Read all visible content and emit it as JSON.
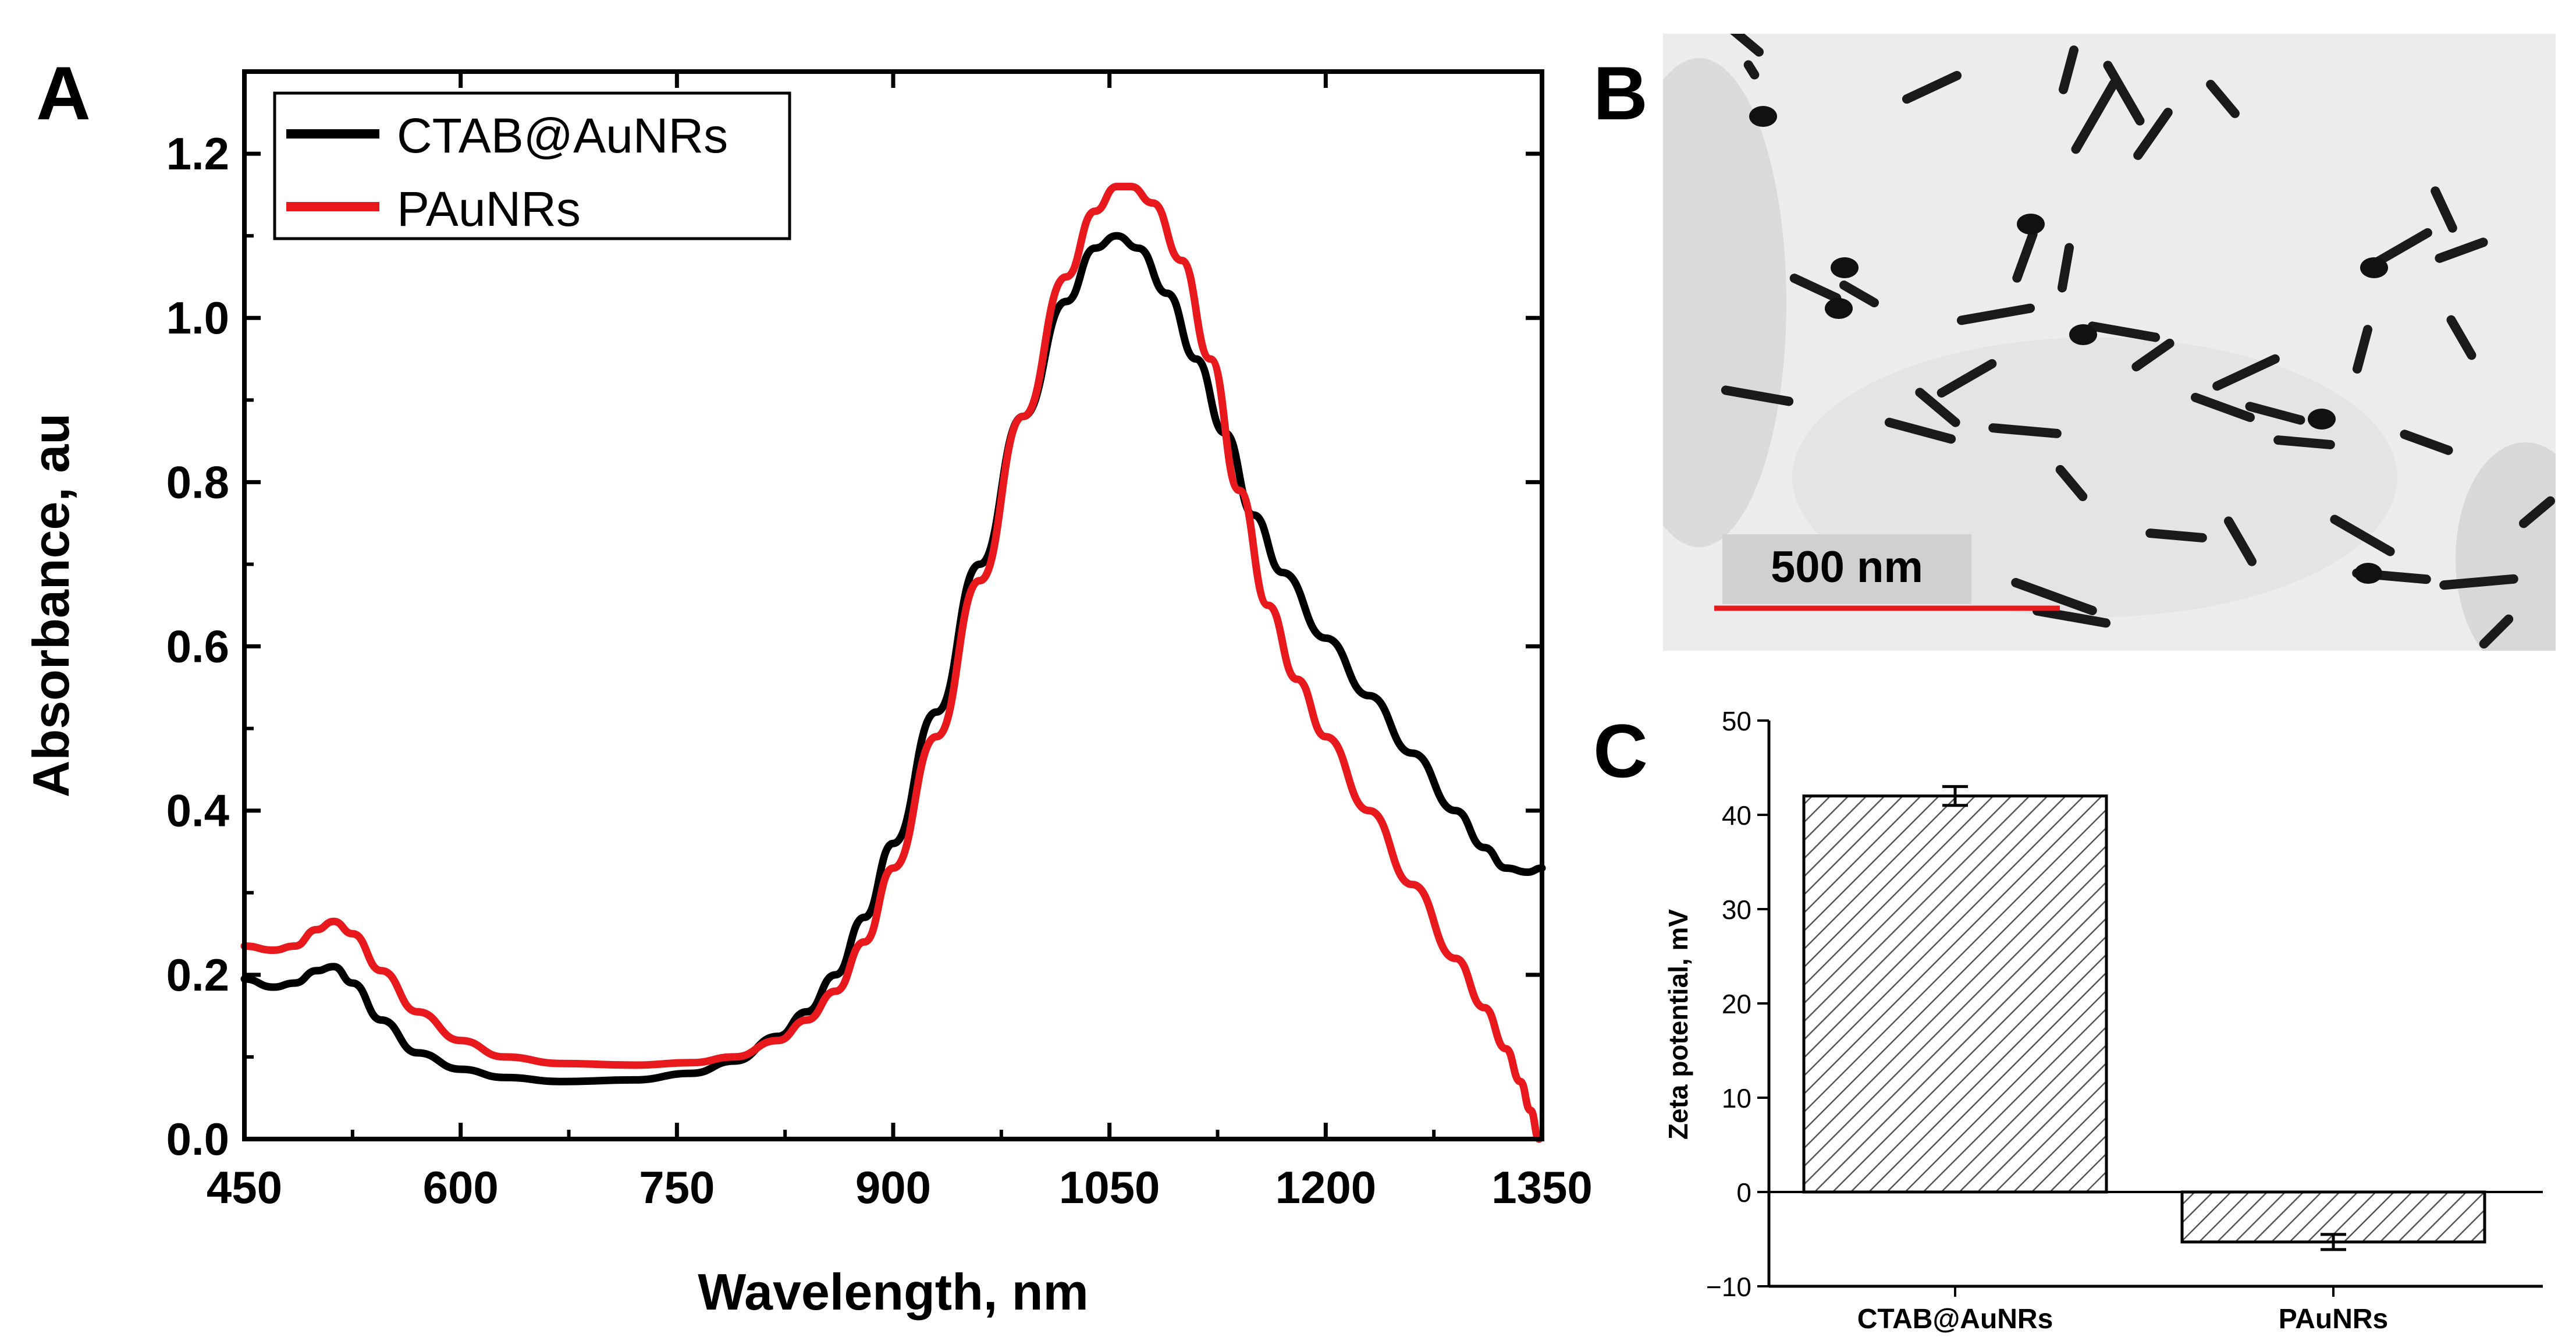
{
  "panels": {
    "a_label": "A",
    "b_label": "B",
    "c_label": "C"
  },
  "tem_image": {
    "scale_bar_label": "500 nm",
    "scale_bar_color": "#e8191c"
  },
  "chart_data": [
    {
      "type": "line",
      "panel": "A",
      "title": "",
      "xlabel": "Wavelength, nm",
      "ylabel": "Absorbance, au",
      "xlim": [
        450,
        1350
      ],
      "ylim": [
        0.0,
        1.3
      ],
      "xticks": [
        450,
        600,
        750,
        900,
        1050,
        1200,
        1350
      ],
      "yticks": [
        0.0,
        0.2,
        0.4,
        0.6,
        0.8,
        1.0,
        1.2
      ],
      "xtick_labels": [
        "450",
        "600",
        "750",
        "900",
        "1050",
        "1200",
        "1350"
      ],
      "ytick_labels": [
        "0.0",
        "0.2",
        "0.4",
        "0.6",
        "0.8",
        "1.0",
        "1.2"
      ],
      "legend_position": "top-left",
      "series": [
        {
          "name": "CTAB@AuNRs",
          "color": "#000000",
          "x": [
            450,
            470,
            485,
            500,
            512,
            525,
            545,
            570,
            600,
            630,
            670,
            720,
            760,
            790,
            820,
            840,
            860,
            880,
            900,
            930,
            960,
            990,
            1020,
            1040,
            1055,
            1070,
            1090,
            1110,
            1130,
            1150,
            1170,
            1200,
            1230,
            1260,
            1290,
            1310,
            1325,
            1340,
            1350
          ],
          "y": [
            0.195,
            0.185,
            0.19,
            0.205,
            0.21,
            0.19,
            0.145,
            0.105,
            0.085,
            0.075,
            0.07,
            0.072,
            0.08,
            0.095,
            0.125,
            0.155,
            0.2,
            0.27,
            0.36,
            0.52,
            0.7,
            0.88,
            1.02,
            1.085,
            1.1,
            1.085,
            1.03,
            0.95,
            0.86,
            0.76,
            0.69,
            0.61,
            0.54,
            0.47,
            0.4,
            0.355,
            0.33,
            0.325,
            0.33
          ]
        },
        {
          "name": "PAuNRs",
          "color": "#e8191c",
          "x": [
            450,
            470,
            485,
            500,
            512,
            525,
            545,
            570,
            600,
            630,
            670,
            720,
            760,
            790,
            820,
            840,
            860,
            880,
            900,
            930,
            960,
            990,
            1020,
            1040,
            1055,
            1065,
            1080,
            1100,
            1120,
            1140,
            1160,
            1180,
            1200,
            1230,
            1260,
            1290,
            1310,
            1325,
            1335,
            1342,
            1348
          ],
          "y": [
            0.235,
            0.23,
            0.235,
            0.255,
            0.265,
            0.25,
            0.205,
            0.155,
            0.12,
            0.1,
            0.092,
            0.09,
            0.093,
            0.1,
            0.12,
            0.145,
            0.18,
            0.24,
            0.33,
            0.49,
            0.68,
            0.88,
            1.05,
            1.13,
            1.16,
            1.16,
            1.14,
            1.07,
            0.95,
            0.79,
            0.65,
            0.56,
            0.49,
            0.4,
            0.31,
            0.22,
            0.16,
            0.11,
            0.07,
            0.035,
            0.0
          ]
        }
      ]
    },
    {
      "type": "bar",
      "panel": "C",
      "title": "",
      "xlabel": "",
      "ylabel": "Zeta potential, mV",
      "categories": [
        "CTAB@AuNRs",
        "PAuNRs"
      ],
      "values": [
        42,
        -5.3
      ],
      "errors": [
        1.0,
        0.8
      ],
      "ylim": [
        -10,
        50
      ],
      "yticks": [
        -10,
        0,
        10,
        20,
        30,
        40,
        50
      ],
      "ytick_labels": [
        "−10",
        "0",
        "10",
        "20",
        "30",
        "40",
        "50"
      ],
      "hatch": "diagonal"
    }
  ]
}
